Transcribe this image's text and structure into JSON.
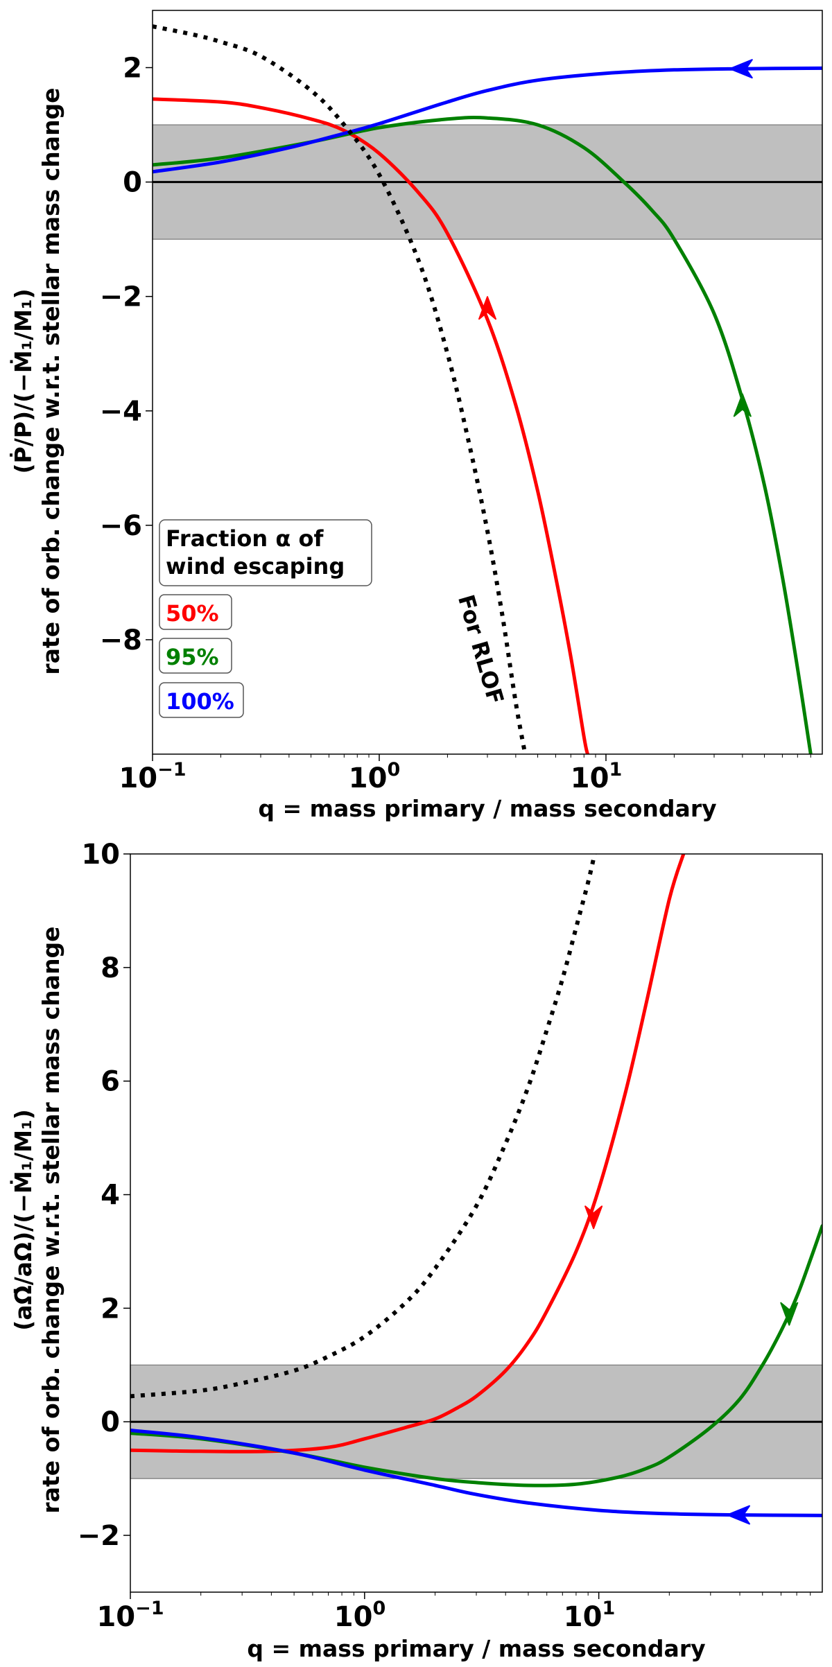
{
  "chart_data": [
    {
      "type": "line",
      "title": "",
      "xlabel": "q = mass primary / mass secondary",
      "ylabel_line1": "(Ṗ/P)/(−Ṁ₁/M₁)",
      "ylabel_line2": "rate of orb. change w.r.t. stellar mass change",
      "xscale": "log",
      "xlim": [
        0.1,
        90
      ],
      "ylim": [
        -10,
        3
      ],
      "xticks": [
        {
          "value": 0.1,
          "base": "10",
          "exp": "−1"
        },
        {
          "value": 1,
          "base": "10",
          "exp": "0"
        },
        {
          "value": 10,
          "base": "10",
          "exp": "1"
        }
      ],
      "yticks": [
        {
          "value": 2,
          "label": "2"
        },
        {
          "value": 0,
          "label": "0"
        },
        {
          "value": -2,
          "label": "−2"
        },
        {
          "value": -4,
          "label": "−4"
        },
        {
          "value": -6,
          "label": "−6"
        },
        {
          "value": -8,
          "label": "−8"
        }
      ],
      "band": [
        -1,
        1
      ],
      "hline": 0,
      "legend": {
        "title_line1": "Fraction α of",
        "title_line2": "wind escaping",
        "placement": "lower-left",
        "entries": [
          {
            "label": "50%",
            "color": "#ff0000"
          },
          {
            "label": "95%",
            "color": "#008000"
          },
          {
            "label": "100%",
            "color": "#0000ff"
          }
        ]
      },
      "annotations": [
        {
          "text": "For RLOF"
        }
      ],
      "series": [
        {
          "name": "50%",
          "color": "#ff0000",
          "x": [
            0.1,
            0.2,
            0.3,
            0.5,
            0.7,
            1.0,
            1.5,
            2.0,
            3.0,
            4.0,
            5.0,
            6.0,
            7.0,
            8.0,
            8.3
          ],
          "y": [
            1.45,
            1.4,
            1.3,
            1.1,
            0.9,
            0.5,
            -0.2,
            -0.9,
            -2.4,
            -3.9,
            -5.4,
            -6.9,
            -8.3,
            -9.7,
            -10.0
          ],
          "arrow": {
            "x": 3.0,
            "y": -2.2,
            "direction": "up"
          }
        },
        {
          "name": "95%",
          "color": "#008000",
          "x": [
            0.1,
            0.2,
            0.5,
            1.0,
            2.0,
            3.0,
            5.0,
            8.0,
            12,
            16,
            20,
            30,
            40,
            50,
            60,
            70,
            80
          ],
          "y": [
            0.3,
            0.42,
            0.7,
            0.95,
            1.1,
            1.12,
            1.0,
            0.6,
            0.0,
            -0.5,
            -1.0,
            -2.3,
            -3.8,
            -5.3,
            -6.9,
            -8.5,
            -10.0
          ],
          "arrow": {
            "x": 40,
            "y": -3.9,
            "direction": "up"
          }
        },
        {
          "name": "100%",
          "color": "#0000ff",
          "x": [
            0.1,
            0.2,
            0.4,
            0.7,
            1.0,
            2.0,
            3.0,
            5.0,
            10,
            20,
            40,
            90
          ],
          "y": [
            0.18,
            0.35,
            0.6,
            0.85,
            1.02,
            1.4,
            1.6,
            1.78,
            1.9,
            1.96,
            1.98,
            1.99
          ],
          "arrow": {
            "x": 40,
            "y": 1.98,
            "direction": "left"
          }
        },
        {
          "name": "For RLOF",
          "color": "#000000",
          "style": "dotted",
          "x": [
            0.1,
            0.15,
            0.2,
            0.3,
            0.5,
            0.7,
            1.0,
            1.5,
            2.0,
            2.5,
            3.0,
            3.5,
            4.0,
            4.4
          ],
          "y": [
            2.72,
            2.58,
            2.45,
            2.2,
            1.6,
            1.0,
            0.13,
            -1.4,
            -3.0,
            -4.6,
            -6.1,
            -7.6,
            -9.1,
            -10.0
          ]
        }
      ]
    },
    {
      "type": "line",
      "title": "",
      "xlabel": "q = mass primary / mass secondary",
      "ylabel_line1": "(aΩ̇/aΩ)/(−Ṁ₁/M₁)",
      "ylabel_line2": "rate of orb. change w.r.t. stellar mass change",
      "xscale": "log",
      "xlim": [
        0.1,
        90
      ],
      "ylim": [
        -3,
        10
      ],
      "xticks": [
        {
          "value": 0.1,
          "base": "10",
          "exp": "−1"
        },
        {
          "value": 1,
          "base": "10",
          "exp": "0"
        },
        {
          "value": 10,
          "base": "10",
          "exp": "1"
        }
      ],
      "yticks": [
        {
          "value": 10,
          "label": "10"
        },
        {
          "value": 8,
          "label": "8"
        },
        {
          "value": 6,
          "label": "6"
        },
        {
          "value": 4,
          "label": "4"
        },
        {
          "value": 2,
          "label": "2"
        },
        {
          "value": 0,
          "label": "0"
        },
        {
          "value": -2,
          "label": "−2"
        }
      ],
      "band": [
        -1,
        1
      ],
      "hline": 0,
      "series": [
        {
          "name": "50%",
          "color": "#ff0000",
          "x": [
            0.1,
            0.2,
            0.4,
            0.7,
            1.0,
            1.5,
            2.0,
            2.5,
            3.0,
            4.0,
            5.0,
            6.0,
            8.0,
            10,
            13,
            16,
            20,
            23
          ],
          "y": [
            -0.5,
            -0.52,
            -0.52,
            -0.45,
            -0.3,
            -0.1,
            0.05,
            0.25,
            0.45,
            0.9,
            1.4,
            1.95,
            3.0,
            4.1,
            5.8,
            7.4,
            9.2,
            10.0
          ],
          "arrow": {
            "x": 9.5,
            "y": 3.6,
            "direction": "down"
          }
        },
        {
          "name": "95%",
          "color": "#008000",
          "x": [
            0.1,
            0.2,
            0.5,
            1.0,
            2.0,
            3.0,
            5.0,
            8.0,
            12,
            16,
            20,
            30,
            40,
            50,
            60,
            70,
            80,
            90
          ],
          "y": [
            -0.2,
            -0.3,
            -0.55,
            -0.8,
            -1.0,
            -1.07,
            -1.12,
            -1.1,
            -0.98,
            -0.82,
            -0.62,
            -0.1,
            0.4,
            1.0,
            1.6,
            2.2,
            2.85,
            3.45
          ],
          "arrow": {
            "x": 65,
            "y": 1.9,
            "direction": "down"
          }
        },
        {
          "name": "100%",
          "color": "#0000ff",
          "x": [
            0.1,
            0.2,
            0.5,
            1.0,
            2.0,
            3.0,
            5.0,
            10,
            20,
            40,
            90
          ],
          "y": [
            -0.15,
            -0.28,
            -0.55,
            -0.85,
            -1.12,
            -1.28,
            -1.43,
            -1.56,
            -1.62,
            -1.64,
            -1.65
          ],
          "arrow": {
            "x": 40,
            "y": -1.64,
            "direction": "left"
          }
        },
        {
          "name": "For RLOF",
          "color": "#000000",
          "style": "dotted",
          "x": [
            0.1,
            0.2,
            0.3,
            0.5,
            0.7,
            1.0,
            1.5,
            2.0,
            3.0,
            4.0,
            5.0,
            6.0,
            7.0,
            8.0,
            9.0,
            9.6
          ],
          "y": [
            0.45,
            0.55,
            0.68,
            0.9,
            1.15,
            1.5,
            2.1,
            2.7,
            3.8,
            4.9,
            5.9,
            6.9,
            7.8,
            8.7,
            9.5,
            10.0
          ]
        }
      ]
    }
  ]
}
